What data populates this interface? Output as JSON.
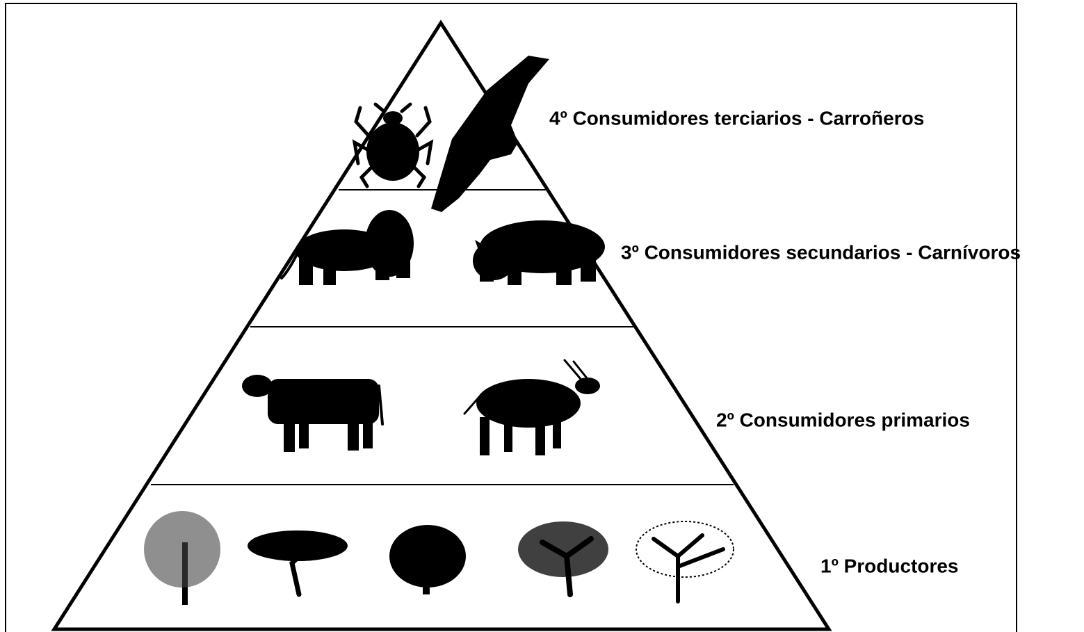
{
  "levels": [
    {
      "label": "4º Consumidores terciarios - Carroñeros"
    },
    {
      "label": "3º Consumidores secundarios - Carnívoros"
    },
    {
      "label": "2º Consumidores primarios"
    },
    {
      "label": "1º Productores"
    }
  ]
}
